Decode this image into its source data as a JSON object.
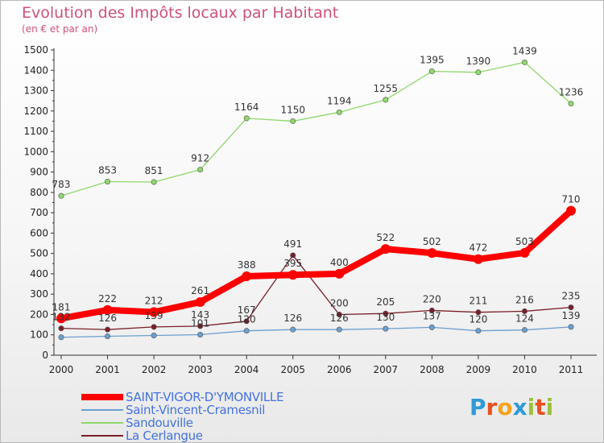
{
  "title": "Evolution des Impôts locaux par Habitant",
  "subtitle": "(en € et par an)",
  "logo": {
    "letters": [
      "P",
      "r",
      "o",
      "x",
      "i",
      "t",
      "i"
    ],
    "colors": [
      "#2e9ad8",
      "#e8501e",
      "#f5a31c",
      "#2e9ad8",
      "#9cc23c",
      "#e8501e",
      "#9cc23c"
    ]
  },
  "chart_data": {
    "type": "line",
    "x": [
      "2000",
      "2001",
      "2002",
      "2003",
      "2004",
      "2005",
      "2006",
      "2007",
      "2008",
      "2009",
      "2010",
      "2011"
    ],
    "ylim": [
      0,
      1500
    ],
    "yticks": [
      0,
      100,
      200,
      300,
      400,
      500,
      600,
      700,
      800,
      900,
      1000,
      1100,
      1200,
      1300,
      1400,
      1500
    ],
    "grid": false,
    "legend_position": "bottom-left",
    "series": [
      {
        "name": "SAINT-VIGOR-D'YMONVILLE",
        "color": "#ff0000",
        "width": 8,
        "markerRadius": 6,
        "values": [
          181,
          222,
          212,
          261,
          388,
          395,
          400,
          522,
          502,
          472,
          503,
          710
        ],
        "labels": [
          "181",
          "222",
          "212",
          "261",
          "388",
          "395",
          "400",
          "522",
          "502",
          "472",
          "503",
          "710"
        ]
      },
      {
        "name": "Saint-Vincent-Cramesnil",
        "color": "#6b9fd0",
        "width": 1.3,
        "markerRadius": 3.2,
        "values": [
          88,
          93,
          97,
          101,
          120,
          126,
          126,
          130,
          137,
          120,
          124,
          139
        ],
        "labels": [
          "",
          "",
          "",
          "101",
          "120",
          "126",
          "126",
          "130",
          "137",
          "120",
          "124",
          "139"
        ]
      },
      {
        "name": "Sandouville",
        "color": "#8fd86b",
        "width": 1.3,
        "markerRadius": 3.2,
        "values": [
          783,
          853,
          851,
          912,
          1164,
          1150,
          1194,
          1255,
          1395,
          1390,
          1439,
          1236
        ],
        "labels": [
          "783",
          "853",
          "851",
          "912",
          "1164",
          "1150",
          "1194",
          "1255",
          "1395",
          "1390",
          "1439",
          "1236"
        ]
      },
      {
        "name": "La Cerlangue",
        "color": "#7a1f2a",
        "width": 1.3,
        "markerRadius": 3.2,
        "values": [
          132,
          126,
          139,
          143,
          167,
          491,
          200,
          205,
          220,
          211,
          216,
          235
        ],
        "labels": [
          "132",
          "126",
          "139",
          "143",
          "167",
          "491",
          "200",
          "205",
          "220",
          "211",
          "216",
          "235"
        ]
      }
    ]
  }
}
